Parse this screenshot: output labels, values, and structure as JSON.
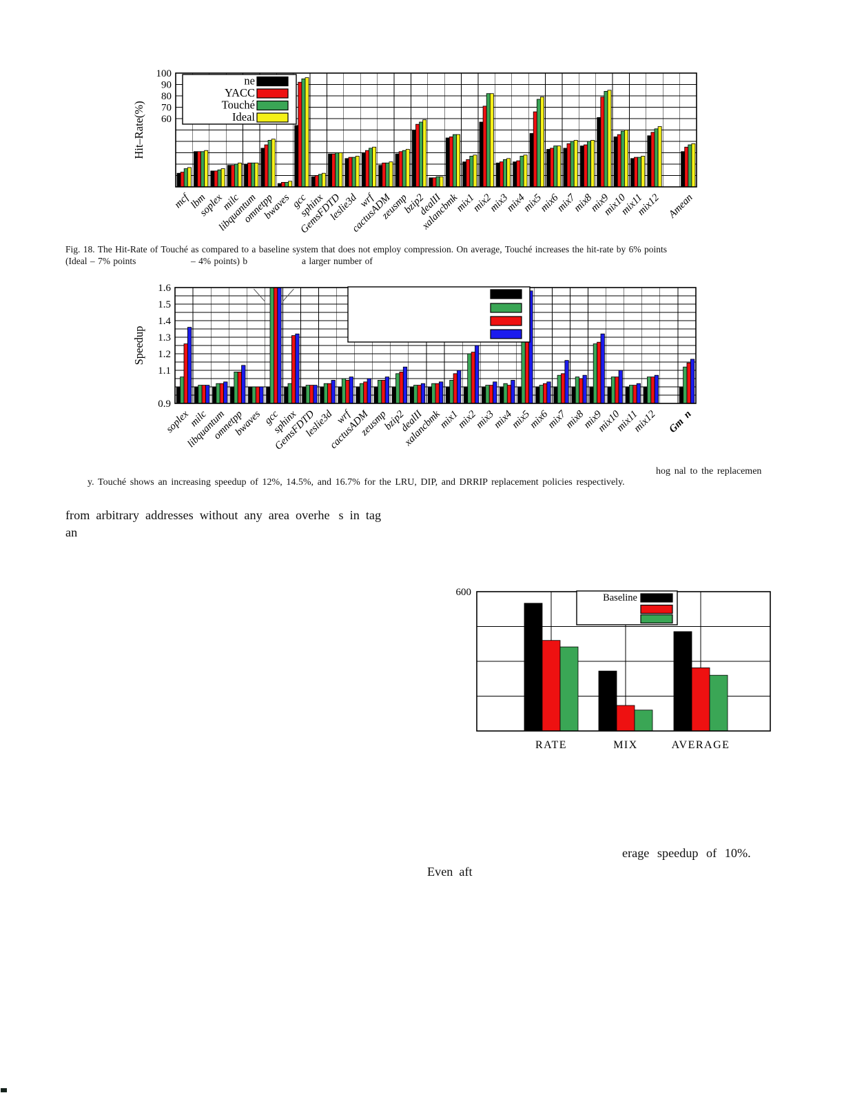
{
  "figure18": {
    "caption_line1": "Fig. 18.   The Hit-Rate of Touché as compared to a baseline system that does not employ compression. On average, Touché increases the hit-rate by 6% points",
    "caption_line2a": "(Ideal – 7% points",
    "caption_line2b": "– 4% points) b",
    "caption_line2c": "a larger number of"
  },
  "fragments": {
    "right_of_fig19": "hog nal to the replacemen",
    "fig19_caption_line": "y. Touché shows an increasing speedup of 12%, 14.5%, and 16.7% for the LRU, DIP, and DRRIP replacement policies respectively.",
    "body_line1_a": "from arbitrary addresses without any area overhe",
    "body_line1_b": "s in tag",
    "body_line2": "an",
    "avg_speedup": "erage speedup of 10%.",
    "even_after": "Even aft"
  },
  "colors": {
    "black": "#000000",
    "red": "#ee1111",
    "green": "#3aa655",
    "yellow": "#f5f118",
    "blue": "#1b1bee"
  },
  "chart_data": [
    {
      "type": "bar",
      "title": "",
      "xlabel": "",
      "ylabel": "Hit–Rate(%)",
      "ylim": [
        0,
        100
      ],
      "yticks_shown": [
        "100",
        "90",
        "80",
        "70",
        "60"
      ],
      "grid_step": 10,
      "legend_position": "top-left",
      "legend_labels": [
        "ne",
        "YACC",
        "Touché",
        "Ideal"
      ],
      "categories": [
        "mcf",
        "lbm",
        "soplex",
        "milc",
        "libquantum",
        "omnetpp",
        "bwaves",
        "gcc",
        "sphinx",
        "GemsFDTD",
        "leslie3d",
        "wrf",
        "cactusADM",
        "zeusmp",
        "bzip2",
        "dealII",
        "xalancbmk",
        "mix1",
        "mix2",
        "mix3",
        "mix4",
        "mix5",
        "mix6",
        "mix7",
        "mix8",
        "mix9",
        "mix10",
        "mix11",
        "mix12",
        "Amean"
      ],
      "series": [
        {
          "name": "ne",
          "color": "#000000",
          "values": [
            12,
            31,
            14,
            19,
            20,
            34,
            3,
            54,
            9,
            29,
            25,
            30,
            19,
            29,
            50,
            8,
            43,
            22,
            57,
            21,
            22,
            47,
            33,
            34,
            36,
            61,
            44,
            25,
            45,
            31
          ]
        },
        {
          "name": "YACC",
          "color": "#ee1111",
          "values": [
            13,
            31,
            14,
            19,
            21,
            37,
            4,
            92,
            10,
            29,
            26,
            32,
            21,
            31,
            55,
            8,
            44,
            24,
            71,
            22,
            23,
            66,
            34,
            38,
            37,
            79,
            46,
            26,
            48,
            35
          ]
        },
        {
          "name": "Touché",
          "color": "#3aa655",
          "values": [
            16,
            31,
            15,
            20,
            21,
            41,
            4,
            95,
            11,
            30,
            26,
            34,
            21,
            32,
            57,
            9,
            46,
            27,
            82,
            24,
            27,
            77,
            36,
            40,
            40,
            84,
            49,
            26,
            51,
            37
          ]
        },
        {
          "name": "Ideal",
          "color": "#f5f118",
          "values": [
            17,
            32,
            16,
            21,
            21,
            42,
            5,
            96,
            12,
            30,
            27,
            35,
            22,
            33,
            59,
            9,
            46,
            28,
            82,
            25,
            28,
            79,
            36,
            41,
            41,
            85,
            50,
            27,
            53,
            38
          ]
        }
      ]
    },
    {
      "type": "bar",
      "title": "",
      "xlabel": "",
      "ylabel": "Speedup",
      "ylim": [
        0.9,
        1.6
      ],
      "yticks_shown": [
        "1.6",
        "1.5",
        "1.4",
        "1.3",
        "1.2",
        "1.1",
        "0.9"
      ],
      "grid_step": 0.05,
      "legend_position": "top-middle",
      "legend_labels": [
        "",
        "",
        "",
        ""
      ],
      "note": "gcc bars are clipped at the 1.6 axis top; callout tick lines drawn above gcc",
      "categories": [
        "soplex",
        "milc",
        "libquantum",
        "omnetpp",
        "bwaves",
        "gcc",
        "sphinx",
        "GemsFDTD",
        "leslie3d",
        "wrf",
        "cactusADM",
        "zeusmp",
        "bzip2",
        "dealII",
        "xalancbmk",
        "mix1",
        "mix2",
        "mix3",
        "mix4",
        "mix5",
        "mix6",
        "mix7",
        "mix8",
        "mix9",
        "mix10",
        "mix11",
        "mix12",
        "Gm  n"
      ],
      "series": [
        {
          "name": "series-black",
          "color": "#000000",
          "values": [
            1.0,
            1.0,
            1.0,
            1.0,
            1.0,
            1.0,
            1.0,
            1.0,
            1.0,
            1.0,
            1.0,
            1.0,
            1.0,
            1.0,
            1.0,
            1.0,
            1.0,
            1.0,
            1.0,
            1.0,
            1.0,
            1.0,
            1.0,
            1.0,
            1.0,
            1.0,
            1.0,
            1.0
          ]
        },
        {
          "name": "series-green",
          "color": "#3aa655",
          "values": [
            1.06,
            1.01,
            1.02,
            1.09,
            1.0,
            1.62,
            1.02,
            1.01,
            1.02,
            1.05,
            1.02,
            1.04,
            1.08,
            1.01,
            1.02,
            1.04,
            1.2,
            1.01,
            1.02,
            1.4,
            1.01,
            1.07,
            1.06,
            1.26,
            1.06,
            1.01,
            1.06,
            1.12
          ]
        },
        {
          "name": "series-red",
          "color": "#ee1111",
          "values": [
            1.26,
            1.01,
            1.02,
            1.09,
            1.0,
            1.62,
            1.31,
            1.01,
            1.02,
            1.04,
            1.03,
            1.04,
            1.09,
            1.01,
            1.02,
            1.08,
            1.21,
            1.01,
            1.01,
            1.49,
            1.02,
            1.08,
            1.05,
            1.27,
            1.06,
            1.01,
            1.06,
            1.145
          ]
        },
        {
          "name": "series-blue",
          "color": "#1b1bee",
          "values": [
            1.36,
            1.01,
            1.03,
            1.13,
            1.0,
            1.62,
            1.32,
            1.01,
            1.04,
            1.06,
            1.05,
            1.06,
            1.12,
            1.02,
            1.03,
            1.1,
            1.25,
            1.03,
            1.04,
            1.58,
            1.03,
            1.16,
            1.07,
            1.32,
            1.1,
            1.02,
            1.07,
            1.167
          ]
        }
      ]
    },
    {
      "type": "bar",
      "title": "",
      "xlabel": "",
      "ylabel": "",
      "ylim": [
        0,
        600
      ],
      "yticks_shown": [
        "600"
      ],
      "grid_step": 150,
      "legend_position": "top-middle",
      "legend_labels": [
        "Baseline",
        "",
        ""
      ],
      "categories": [
        "RATE",
        "MIX",
        "AVERAGE"
      ],
      "series": [
        {
          "name": "Baseline",
          "color": "#000000",
          "values": [
            550,
            258,
            428
          ]
        },
        {
          "name": "series-red",
          "color": "#ee1111",
          "values": [
            390,
            110,
            272
          ]
        },
        {
          "name": "series-green",
          "color": "#3aa655",
          "values": [
            362,
            90,
            240
          ]
        }
      ]
    }
  ]
}
